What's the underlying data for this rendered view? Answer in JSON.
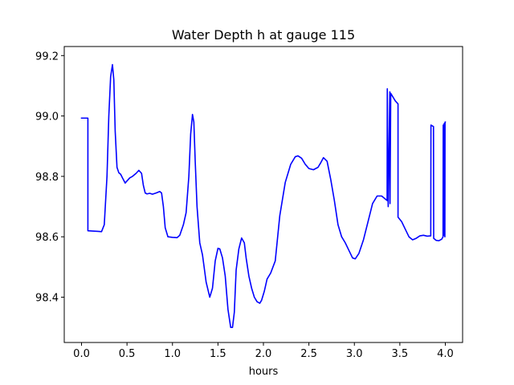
{
  "chart_data": {
    "type": "line",
    "title": "Water Depth h at gauge 115",
    "xlabel": "hours",
    "ylabel": "",
    "xlim": [
      -0.19,
      4.19
    ],
    "ylim": [
      98.25,
      99.23
    ],
    "grid": false,
    "xticks": [
      0.0,
      0.5,
      1.0,
      1.5,
      2.0,
      2.5,
      3.0,
      3.5,
      4.0
    ],
    "xtick_labels": [
      "0.0",
      "0.5",
      "1.0",
      "1.5",
      "2.0",
      "2.5",
      "3.0",
      "3.5",
      "4.0"
    ],
    "yticks": [
      98.4,
      98.6,
      98.8,
      99.0,
      99.2
    ],
    "ytick_labels": [
      "98.4",
      "98.6",
      "98.8",
      "99.0",
      "99.2"
    ],
    "series": [
      {
        "color": "#0000ff",
        "x": [
          0.0,
          0.07,
          0.07,
          0.12,
          0.18,
          0.22,
          0.25,
          0.28,
          0.3,
          0.32,
          0.34,
          0.355,
          0.37,
          0.39,
          0.41,
          0.43,
          0.45,
          0.48,
          0.5,
          0.53,
          0.56,
          0.6,
          0.63,
          0.66,
          0.68,
          0.7,
          0.72,
          0.75,
          0.78,
          0.82,
          0.86,
          0.88,
          0.9,
          0.92,
          0.95,
          1.0,
          1.05,
          1.08,
          1.12,
          1.15,
          1.18,
          1.2,
          1.22,
          1.235,
          1.25,
          1.27,
          1.3,
          1.33,
          1.37,
          1.41,
          1.44,
          1.47,
          1.5,
          1.52,
          1.55,
          1.58,
          1.61,
          1.64,
          1.66,
          1.68,
          1.7,
          1.73,
          1.76,
          1.79,
          1.81,
          1.84,
          1.87,
          1.9,
          1.93,
          1.96,
          1.98,
          2.01,
          2.04,
          2.08,
          2.13,
          2.18,
          2.24,
          2.3,
          2.35,
          2.38,
          2.42,
          2.46,
          2.5,
          2.55,
          2.6,
          2.63,
          2.66,
          2.7,
          2.74,
          2.78,
          2.82,
          2.86,
          2.9,
          2.94,
          2.98,
          3.01,
          3.05,
          3.1,
          3.15,
          3.2,
          3.25,
          3.3,
          3.34,
          3.36,
          3.362,
          3.37,
          3.372,
          3.39,
          3.392,
          3.4,
          3.45,
          3.48,
          3.48,
          3.52,
          3.56,
          3.6,
          3.64,
          3.68,
          3.72,
          3.76,
          3.8,
          3.84,
          3.842,
          3.87,
          3.872,
          3.9,
          3.93,
          3.96,
          3.975,
          3.977,
          3.985,
          3.987,
          3.995,
          3.997,
          4.0
        ],
        "y": [
          98.993,
          98.993,
          98.62,
          98.619,
          98.618,
          98.617,
          98.64,
          98.8,
          99.0,
          99.13,
          99.17,
          99.12,
          98.95,
          98.83,
          98.812,
          98.807,
          98.795,
          98.778,
          98.785,
          98.795,
          98.8,
          98.81,
          98.82,
          98.81,
          98.77,
          98.745,
          98.742,
          98.744,
          98.741,
          98.745,
          98.75,
          98.745,
          98.7,
          98.63,
          98.6,
          98.598,
          98.597,
          98.605,
          98.64,
          98.68,
          98.8,
          98.94,
          99.005,
          98.98,
          98.85,
          98.7,
          98.58,
          98.54,
          98.45,
          98.4,
          98.43,
          98.52,
          98.562,
          98.56,
          98.53,
          98.47,
          98.36,
          98.3,
          98.3,
          98.35,
          98.49,
          98.56,
          98.596,
          98.58,
          98.53,
          98.47,
          98.43,
          98.4,
          98.385,
          98.38,
          98.39,
          98.42,
          98.46,
          98.48,
          98.52,
          98.67,
          98.78,
          98.84,
          98.865,
          98.868,
          98.86,
          98.84,
          98.826,
          98.822,
          98.83,
          98.845,
          98.862,
          98.85,
          98.79,
          98.72,
          98.64,
          98.6,
          98.58,
          98.555,
          98.53,
          98.527,
          98.545,
          98.59,
          98.65,
          98.71,
          98.735,
          98.735,
          98.725,
          98.72,
          99.09,
          98.73,
          98.7,
          99.08,
          98.71,
          99.075,
          99.05,
          99.04,
          98.665,
          98.65,
          98.625,
          98.6,
          98.59,
          98.595,
          98.603,
          98.605,
          98.602,
          98.603,
          98.97,
          98.965,
          98.595,
          98.588,
          98.587,
          98.592,
          98.6,
          98.97,
          98.605,
          98.975,
          98.6,
          98.98,
          98.98
        ]
      }
    ]
  }
}
